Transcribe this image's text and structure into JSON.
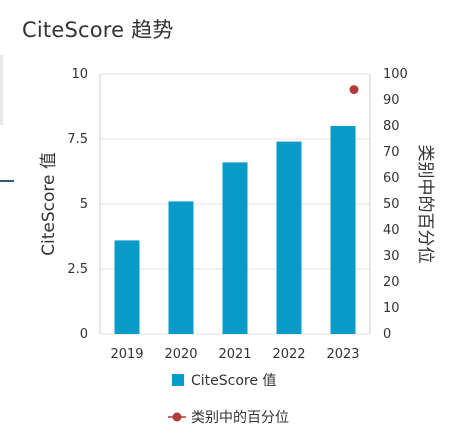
{
  "title": "CiteScore 趋势",
  "chart_data": {
    "type": "bar",
    "categories": [
      "2019",
      "2020",
      "2021",
      "2022",
      "2023"
    ],
    "series": [
      {
        "name": "CiteScore 值",
        "axis": "left",
        "type": "bar",
        "values": [
          3.6,
          5.1,
          6.6,
          7.4,
          8.0
        ],
        "color": "#0a9ac7"
      },
      {
        "name": "类别中的百分位",
        "axis": "right",
        "type": "point",
        "values": [
          null,
          null,
          null,
          null,
          94
        ],
        "color": "#b23b3b"
      }
    ],
    "ylabel": "CiteScore 值",
    "ylabel_right": "类别中的百分位",
    "ylim": [
      0,
      10
    ],
    "ylim_right": [
      0,
      100
    ],
    "yticks": [
      "0",
      "2.5",
      "5",
      "7.5",
      "10"
    ],
    "yticks_right": [
      "0",
      "10",
      "20",
      "30",
      "40",
      "50",
      "60",
      "70",
      "80",
      "90",
      "100"
    ],
    "grid": true,
    "legend_position": "bottom"
  }
}
